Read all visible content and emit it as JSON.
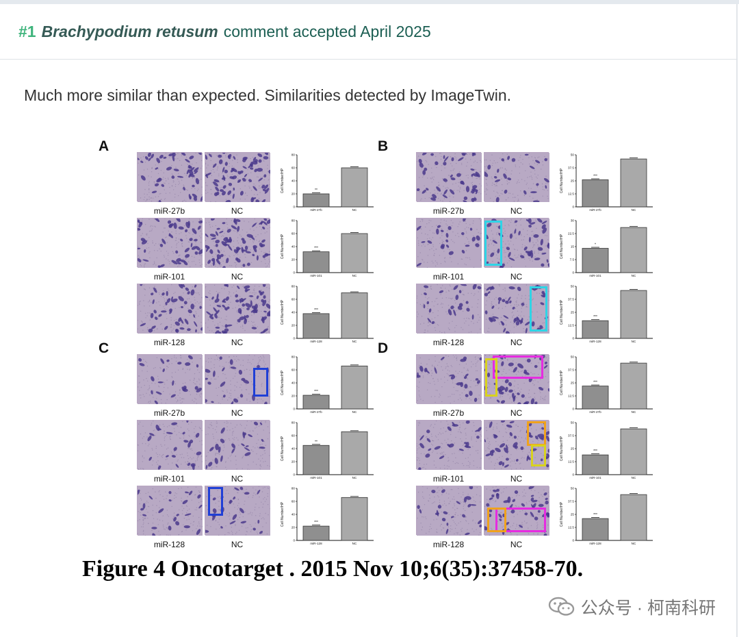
{
  "header": {
    "number": "#1",
    "species": "Brachypodium retusum",
    "rest": "comment accepted April 2025"
  },
  "comment": {
    "text": "Much more similar than expected. Similarities detected by ImageTwin."
  },
  "figure": {
    "caption": "Figure 4 Oncotarget . 2015 Nov 10;6(35):37458-70.",
    "y_axis_label": "Cell Number/HP",
    "panels": [
      {
        "letter": "A",
        "rows": [
          {
            "left_label": "miR-27b",
            "right_label": "NC",
            "values": [
              20,
              60
            ],
            "sig": "**",
            "ymax": 80
          },
          {
            "left_label": "miR-101",
            "right_label": "NC",
            "values": [
              32,
              60
            ],
            "sig": "***",
            "ymax": 80
          },
          {
            "left_label": "miR-128",
            "right_label": "NC",
            "values": [
              38,
              70
            ],
            "sig": "***",
            "ymax": 80
          }
        ]
      },
      {
        "letter": "B",
        "rows": [
          {
            "left_label": "miR-27b",
            "right_label": "NC",
            "values": [
              26,
              46
            ],
            "sig": "***",
            "ymax": 50
          },
          {
            "left_label": "miR-101",
            "right_label": "NC",
            "values": [
              14,
              26
            ],
            "sig": "*",
            "ymax": 30
          },
          {
            "left_label": "miR-128",
            "right_label": "NC",
            "values": [
              17,
              46
            ],
            "sig": "***",
            "ymax": 50
          }
        ]
      },
      {
        "letter": "C",
        "rows": [
          {
            "left_label": "miR-27b",
            "right_label": "NC",
            "values": [
              21,
              66
            ],
            "sig": "***",
            "ymax": 80
          },
          {
            "left_label": "miR-101",
            "right_label": "NC",
            "values": [
              45,
              66
            ],
            "sig": "**",
            "ymax": 80
          },
          {
            "left_label": "miR-128",
            "right_label": "NC",
            "values": [
              22,
              66
            ],
            "sig": "***",
            "ymax": 80
          }
        ]
      },
      {
        "letter": "D",
        "rows": [
          {
            "left_label": "miR-27b",
            "right_label": "NC",
            "values": [
              22,
              44
            ],
            "sig": "***",
            "ymax": 50
          },
          {
            "left_label": "miR-101",
            "right_label": "NC",
            "values": [
              19,
              44
            ],
            "sig": "***",
            "ymax": 50
          },
          {
            "left_label": "miR-128",
            "right_label": "NC",
            "values": [
              21,
              44
            ],
            "sig": "***",
            "ymax": 50
          }
        ]
      }
    ],
    "highlight_colors": {
      "cyan": "#2fd4e6",
      "blue": "#1f3fd6",
      "yellow": "#d8d21e",
      "magenta": "#e62be0",
      "orange": "#f0a21c"
    }
  },
  "watermark": {
    "text": "公众号 · 柯南科研",
    "icon": "wechat-icon"
  }
}
